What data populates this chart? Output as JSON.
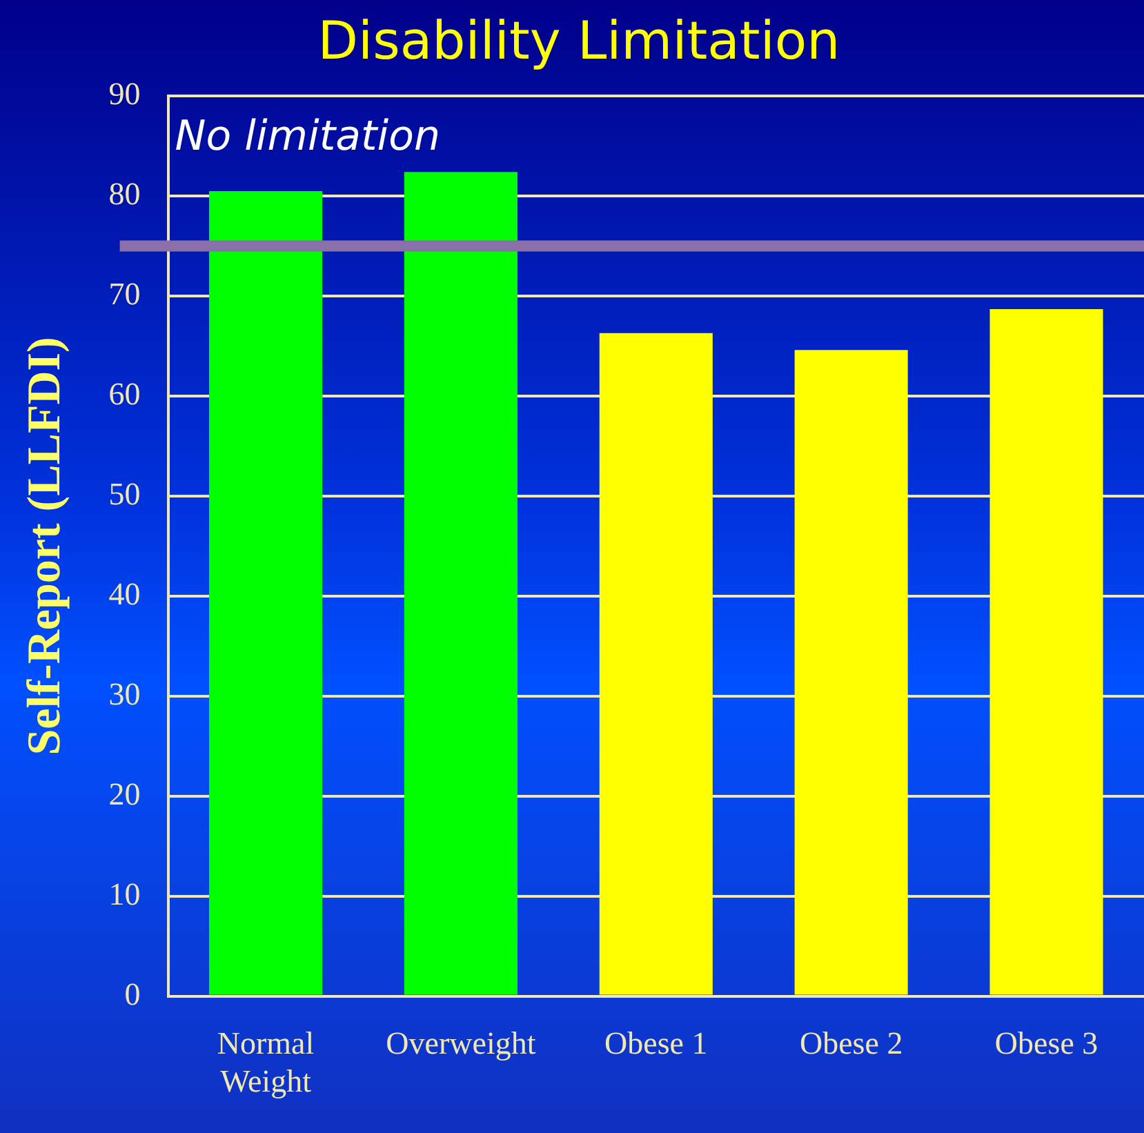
{
  "chart_data": {
    "type": "bar",
    "title": "Disability Limitation",
    "ylabel": "Self-Report (LLFDI)",
    "categories": [
      "Normal Weight",
      "Overweight",
      "Obese 1",
      "Obese 2",
      "Obese 3"
    ],
    "values": [
      80.5,
      82.4,
      66.3,
      64.6,
      68.7
    ],
    "colors": [
      "#00ff00",
      "#00ff00",
      "#ffff00",
      "#ffff00",
      "#ffff00"
    ],
    "ylim": [
      0,
      90
    ],
    "yticks": [
      0,
      10,
      20,
      30,
      40,
      50,
      60,
      70,
      80,
      90
    ],
    "grid": "y",
    "legend": false,
    "ref_lines": [
      {
        "axis": "y",
        "value": 75,
        "label": "No limitation",
        "color": "#8a6fa8"
      }
    ]
  }
}
